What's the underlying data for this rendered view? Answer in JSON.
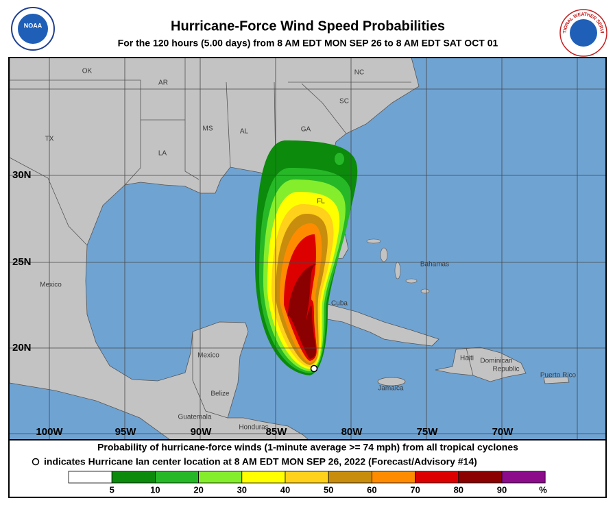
{
  "header": {
    "title": "Hurricane-Force Wind Speed Probabilities",
    "subtitle": "For the 120 hours (5.00 days) from 8 AM EDT MON SEP 26 to 8 AM EDT SAT OCT 01",
    "logo_left": "NOAA",
    "logo_right": "NATIONAL WEATHER SERVICE"
  },
  "map": {
    "lon_labels": [
      "100W",
      "95W",
      "90W",
      "85W",
      "80W",
      "75W",
      "70W"
    ],
    "lat_labels": [
      "30N",
      "25N",
      "20N"
    ],
    "places": [
      "OK",
      "AR",
      "NC",
      "SC",
      "TX",
      "MS",
      "AL",
      "GA",
      "LA",
      "FL",
      "Bahamas",
      "Mexico",
      "Cuba",
      "Mexico",
      "Haiti",
      "Dominican",
      "Republic",
      "Puerto Rico",
      "Jamaica",
      "Belize",
      "Guatemala",
      "Honduras"
    ]
  },
  "footer": {
    "line1": "Probability of hurricane-force winds (1-minute average >= 74 mph) from all tropical cyclones",
    "line2": "indicates Hurricane Ian center location at 8 AM EDT MON SEP 26, 2022 (Forecast/Advisory #14)"
  },
  "legend": {
    "colors": [
      "#ffffff",
      "#0b8a0b",
      "#27b827",
      "#85ee2c",
      "#ffff00",
      "#ffd11a",
      "#c88d0c",
      "#ff8c00",
      "#dd0000",
      "#8b0000",
      "#8b0b8b"
    ],
    "labels": [
      5,
      10,
      20,
      30,
      40,
      50,
      60,
      70,
      80,
      90
    ],
    "unit": "%"
  }
}
